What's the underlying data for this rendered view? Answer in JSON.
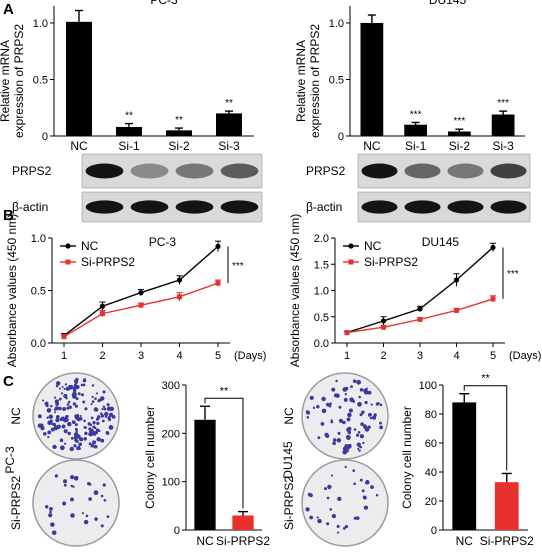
{
  "panels": {
    "a": {
      "label": "A"
    },
    "b": {
      "label": "B"
    },
    "c": {
      "label": "C"
    }
  },
  "blots": {
    "left": {
      "bands": [
        {
          "name": "PRPS2",
          "intensities": [
            1.0,
            0.35,
            0.45,
            0.6
          ]
        },
        {
          "name": "β-actin",
          "intensities": [
            1.0,
            1.0,
            1.0,
            1.0
          ]
        }
      ]
    },
    "right": {
      "bands": [
        {
          "name": "PRPS2",
          "intensities": [
            1.0,
            0.55,
            0.45,
            0.75
          ]
        },
        {
          "name": "β-actin",
          "intensities": [
            1.0,
            1.0,
            1.0,
            1.0
          ]
        }
      ]
    }
  },
  "dishes": {
    "left": {
      "cell_line": "PC-3",
      "rows": [
        {
          "label": "NC",
          "colonies": 230
        },
        {
          "label": "Si-PRPS2",
          "colonies": 30
        }
      ]
    },
    "right": {
      "cell_line": "DU145",
      "rows": [
        {
          "label": "NC",
          "colonies": 88
        },
        {
          "label": "Si-PRPS2",
          "colonies": 32
        }
      ]
    }
  },
  "colors": {
    "black_bar": "#000000",
    "red": "#e8312f",
    "colony": "#3a3a9e"
  },
  "chart_data": [
    {
      "id": "a-left",
      "type": "bar",
      "title": "PC-3",
      "ylabel": "Relative mRNA expression of PRPS2",
      "categories": [
        "NC",
        "Si-1",
        "Si-2",
        "Si-3"
      ],
      "values": [
        1.01,
        0.08,
        0.05,
        0.2
      ],
      "errors": [
        0.1,
        0.03,
        0.02,
        0.02
      ],
      "significance": [
        "",
        "**",
        "**",
        "**"
      ],
      "ylim": [
        0,
        1.15
      ],
      "yticks": [
        "0",
        "0.5",
        "1.0"
      ],
      "ytick_values": [
        0,
        0.5,
        1.0
      ]
    },
    {
      "id": "a-right",
      "type": "bar",
      "title": "DU145",
      "ylabel": "Relative mRNA expression of PRPS2",
      "categories": [
        "NC",
        "Si-1",
        "Si-2",
        "Si-3"
      ],
      "values": [
        1.0,
        0.1,
        0.04,
        0.19
      ],
      "errors": [
        0.07,
        0.02,
        0.02,
        0.03
      ],
      "significance": [
        "",
        "***",
        "***",
        "***"
      ],
      "ylim": [
        0,
        1.15
      ],
      "yticks": [
        "0",
        "0.5",
        "1.0"
      ],
      "ytick_values": [
        0,
        0.5,
        1.0
      ]
    },
    {
      "id": "b-left",
      "type": "line",
      "title": "PC-3",
      "ylabel": "Absorbance values (450 nm)",
      "xunit": "(Days)",
      "x": [
        1,
        2,
        3,
        4,
        5
      ],
      "xticks": [
        "1",
        "2",
        "3",
        "4",
        "5"
      ],
      "ylim": [
        0,
        1.0
      ],
      "yticks": [
        "0.0",
        "0.5",
        "1.0"
      ],
      "ytick_values": [
        0,
        0.5,
        1.0
      ],
      "significance": "***",
      "legend": "top-left",
      "series": [
        {
          "name": "NC",
          "values": [
            0.07,
            0.35,
            0.48,
            0.6,
            0.92
          ],
          "errors": [
            0.02,
            0.04,
            0.03,
            0.04,
            0.05
          ],
          "color": "#000000",
          "marker": "circle"
        },
        {
          "name": "Si-PRPS2",
          "values": [
            0.06,
            0.28,
            0.36,
            0.44,
            0.57
          ],
          "errors": [
            0.01,
            0.03,
            0.02,
            0.04,
            0.03
          ],
          "color": "#e8312f",
          "marker": "square"
        }
      ]
    },
    {
      "id": "b-right",
      "type": "line",
      "title": "DU145",
      "ylabel": "Absorbance values (450 nm)",
      "xunit": "(Days)",
      "x": [
        1,
        2,
        3,
        4,
        5
      ],
      "xticks": [
        "1",
        "2",
        "3",
        "4",
        "5"
      ],
      "ylim": [
        0,
        2.0
      ],
      "yticks": [
        "0.0",
        "0.5",
        "1.0",
        "1.5",
        "2.0"
      ],
      "ytick_values": [
        0,
        0.5,
        1.0,
        1.5,
        2.0
      ],
      "significance": "***",
      "legend": "top-left",
      "series": [
        {
          "name": "NC",
          "values": [
            0.2,
            0.42,
            0.65,
            1.2,
            1.82
          ],
          "errors": [
            0.02,
            0.08,
            0.05,
            0.12,
            0.08
          ],
          "color": "#000000",
          "marker": "circle"
        },
        {
          "name": "Si-PRPS2",
          "values": [
            0.2,
            0.3,
            0.45,
            0.62,
            0.84
          ],
          "errors": [
            0.02,
            0.03,
            0.03,
            0.04,
            0.06
          ],
          "color": "#e8312f",
          "marker": "square"
        }
      ]
    },
    {
      "id": "c-left",
      "type": "bar",
      "ylabel": "Colony cell number",
      "categories": [
        "NC",
        "Si-PRPS2"
      ],
      "values": [
        228,
        30
      ],
      "errors": [
        28,
        8
      ],
      "colors": [
        "#000000",
        "#e8312f"
      ],
      "significance": "**",
      "ylim": [
        0,
        300
      ],
      "yticks": [
        "0",
        "100",
        "200",
        "300"
      ],
      "ytick_values": [
        0,
        100,
        200,
        300
      ]
    },
    {
      "id": "c-right",
      "type": "bar",
      "ylabel": "Colony cell number",
      "categories": [
        "NC",
        "Si-PRPS2"
      ],
      "values": [
        88,
        33
      ],
      "errors": [
        6,
        6
      ],
      "colors": [
        "#000000",
        "#e8312f"
      ],
      "significance": "**",
      "ylim": [
        0,
        100
      ],
      "yticks": [
        "0",
        "20",
        "40",
        "60",
        "80",
        "100"
      ],
      "ytick_values": [
        0,
        20,
        40,
        60,
        80,
        100
      ]
    }
  ]
}
